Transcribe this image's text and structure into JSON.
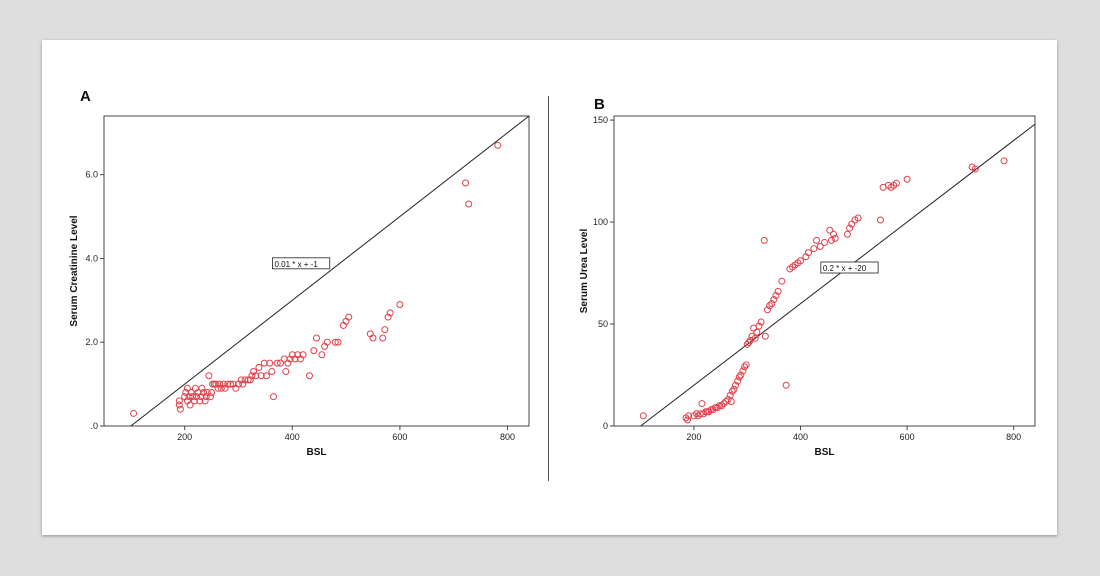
{
  "colors": {
    "background": "#dedede",
    "page": "#ffffff",
    "axis": "#444444",
    "fit_line": "#222222",
    "points": "#e0404a"
  },
  "chart_data": [
    {
      "type": "scatter",
      "panel_label": "A",
      "xlabel": "BSL",
      "ylabel": "Serum Creatinine Level",
      "xlim": [
        50,
        840
      ],
      "ylim": [
        0,
        7.4
      ],
      "x_ticks": [
        200,
        400,
        600,
        800
      ],
      "x_tick_labels": [
        "200",
        "400",
        "600",
        "800"
      ],
      "y_ticks": [
        0,
        2,
        4,
        6
      ],
      "y_tick_labels": [
        ".0",
        "2.0",
        "4.0",
        "6.0"
      ],
      "grid": false,
      "fit_line": {
        "slope": 0.01,
        "intercept": -1,
        "label": "0.01 * x + -1",
        "label_at": {
          "x": 365,
          "y": 3.8
        }
      },
      "points": [
        [
          105,
          0.3
        ],
        [
          190,
          0.6
        ],
        [
          190,
          0.5
        ],
        [
          192,
          0.4
        ],
        [
          200,
          0.7
        ],
        [
          202,
          0.8
        ],
        [
          205,
          0.9
        ],
        [
          205,
          0.6
        ],
        [
          208,
          0.7
        ],
        [
          210,
          0.5
        ],
        [
          212,
          0.8
        ],
        [
          215,
          0.7
        ],
        [
          218,
          0.6
        ],
        [
          220,
          0.9
        ],
        [
          222,
          0.7
        ],
        [
          225,
          0.8
        ],
        [
          228,
          0.6
        ],
        [
          230,
          0.7
        ],
        [
          232,
          0.9
        ],
        [
          235,
          0.8
        ],
        [
          238,
          0.6
        ],
        [
          240,
          0.7
        ],
        [
          242,
          0.8
        ],
        [
          245,
          1.2
        ],
        [
          248,
          0.7
        ],
        [
          250,
          0.8
        ],
        [
          252,
          1.0
        ],
        [
          255,
          1.0
        ],
        [
          258,
          1.0
        ],
        [
          262,
          0.9
        ],
        [
          265,
          1.0
        ],
        [
          268,
          0.9
        ],
        [
          272,
          1.0
        ],
        [
          275,
          0.9
        ],
        [
          280,
          1.0
        ],
        [
          285,
          1.0
        ],
        [
          290,
          1.0
        ],
        [
          295,
          0.9
        ],
        [
          300,
          1.0
        ],
        [
          305,
          1.1
        ],
        [
          308,
          1.0
        ],
        [
          312,
          1.1
        ],
        [
          318,
          1.1
        ],
        [
          322,
          1.1
        ],
        [
          325,
          1.2
        ],
        [
          328,
          1.3
        ],
        [
          332,
          1.2
        ],
        [
          338,
          1.4
        ],
        [
          342,
          1.2
        ],
        [
          348,
          1.5
        ],
        [
          352,
          1.2
        ],
        [
          358,
          1.5
        ],
        [
          362,
          1.3
        ],
        [
          365,
          0.7
        ],
        [
          372,
          1.5
        ],
        [
          378,
          1.5
        ],
        [
          385,
          1.6
        ],
        [
          388,
          1.3
        ],
        [
          392,
          1.5
        ],
        [
          396,
          1.6
        ],
        [
          400,
          1.7
        ],
        [
          405,
          1.6
        ],
        [
          410,
          1.7
        ],
        [
          415,
          1.6
        ],
        [
          420,
          1.7
        ],
        [
          432,
          1.2
        ],
        [
          440,
          1.8
        ],
        [
          445,
          2.1
        ],
        [
          455,
          1.7
        ],
        [
          460,
          1.9
        ],
        [
          465,
          2.0
        ],
        [
          480,
          2.0
        ],
        [
          485,
          2.0
        ],
        [
          495,
          2.4
        ],
        [
          500,
          2.5
        ],
        [
          505,
          2.6
        ],
        [
          545,
          2.2
        ],
        [
          550,
          2.1
        ],
        [
          568,
          2.1
        ],
        [
          572,
          2.3
        ],
        [
          578,
          2.6
        ],
        [
          582,
          2.7
        ],
        [
          600,
          2.9
        ],
        [
          722,
          5.8
        ],
        [
          728,
          5.3
        ],
        [
          782,
          6.7
        ]
      ]
    },
    {
      "type": "scatter",
      "panel_label": "B",
      "xlabel": "BSL",
      "ylabel": "Serum Urea Level",
      "xlim": [
        50,
        840
      ],
      "ylim": [
        0,
        152
      ],
      "x_ticks": [
        200,
        400,
        600,
        800
      ],
      "x_tick_labels": [
        "200",
        "400",
        "600",
        "800"
      ],
      "y_ticks": [
        0,
        50,
        100,
        150
      ],
      "y_tick_labels": [
        "0",
        "50",
        "100",
        "150"
      ],
      "grid": false,
      "fit_line": {
        "slope": 0.2,
        "intercept": -20,
        "label": "0.2 * x + -20",
        "label_at": {
          "x": 440,
          "y": 76
        }
      },
      "points": [
        [
          105,
          5
        ],
        [
          185,
          4
        ],
        [
          188,
          3
        ],
        [
          190,
          5
        ],
        [
          200,
          5
        ],
        [
          205,
          6
        ],
        [
          208,
          5
        ],
        [
          212,
          6
        ],
        [
          215,
          11
        ],
        [
          218,
          6
        ],
        [
          222,
          7
        ],
        [
          225,
          7
        ],
        [
          228,
          7
        ],
        [
          232,
          8
        ],
        [
          236,
          8
        ],
        [
          240,
          9
        ],
        [
          244,
          9
        ],
        [
          248,
          10
        ],
        [
          252,
          10
        ],
        [
          256,
          11
        ],
        [
          260,
          12
        ],
        [
          264,
          13
        ],
        [
          268,
          15
        ],
        [
          270,
          12
        ],
        [
          272,
          17
        ],
        [
          275,
          18
        ],
        [
          278,
          20
        ],
        [
          282,
          22
        ],
        [
          285,
          24
        ],
        [
          288,
          25
        ],
        [
          292,
          27
        ],
        [
          295,
          29
        ],
        [
          298,
          30
        ],
        [
          300,
          40
        ],
        [
          303,
          41
        ],
        [
          306,
          42
        ],
        [
          309,
          44
        ],
        [
          312,
          48
        ],
        [
          315,
          43
        ],
        [
          318,
          46
        ],
        [
          322,
          49
        ],
        [
          326,
          51
        ],
        [
          332,
          91
        ],
        [
          334,
          44
        ],
        [
          338,
          57
        ],
        [
          342,
          59
        ],
        [
          346,
          60
        ],
        [
          350,
          62
        ],
        [
          354,
          64
        ],
        [
          358,
          66
        ],
        [
          365,
          71
        ],
        [
          373,
          20
        ],
        [
          380,
          77
        ],
        [
          385,
          78
        ],
        [
          390,
          79
        ],
        [
          395,
          80
        ],
        [
          400,
          81
        ],
        [
          410,
          83
        ],
        [
          415,
          85
        ],
        [
          425,
          87
        ],
        [
          430,
          91
        ],
        [
          437,
          88
        ],
        [
          445,
          90
        ],
        [
          455,
          96
        ],
        [
          458,
          91
        ],
        [
          462,
          94
        ],
        [
          465,
          92
        ],
        [
          488,
          94
        ],
        [
          492,
          97
        ],
        [
          496,
          99
        ],
        [
          502,
          101
        ],
        [
          508,
          102
        ],
        [
          550,
          101
        ],
        [
          555,
          117
        ],
        [
          565,
          118
        ],
        [
          570,
          117
        ],
        [
          575,
          118
        ],
        [
          580,
          119
        ],
        [
          600,
          121
        ],
        [
          722,
          127
        ],
        [
          728,
          126
        ],
        [
          782,
          130
        ]
      ]
    }
  ]
}
